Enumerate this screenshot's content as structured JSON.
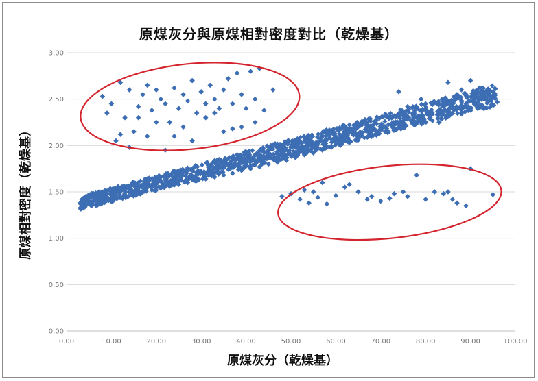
{
  "chart_data": {
    "type": "scatter",
    "title": "原煤灰分與原煤相對密度對比（乾燥基）",
    "xlabel": "原煤灰分（乾燥基）",
    "ylabel": "原煤相對密度（乾燥基）",
    "xlim": [
      0,
      100
    ],
    "ylim": [
      0,
      3
    ],
    "x_ticks": [
      "0.00",
      "10.00",
      "20.00",
      "30.00",
      "40.00",
      "50.00",
      "60.00",
      "70.00",
      "80.00",
      "90.00",
      "100.00"
    ],
    "y_ticks": [
      "0.00",
      "0.50",
      "1.00",
      "1.50",
      "2.00",
      "2.50",
      "3.00"
    ],
    "grid": "horizontal",
    "marker": "diamond",
    "colors": {
      "marker": "#3d6eb4",
      "highlight_ellipse": "#d4242d",
      "gridline": "#d9d9d9"
    },
    "highlight_regions": [
      {
        "x_range": [
          3,
          52
        ],
        "y_range": [
          1.96,
          2.88
        ]
      },
      {
        "x_range": [
          47,
          97
        ],
        "y_range": [
          1.0,
          1.78
        ]
      }
    ],
    "trend_band": {
      "x": [
        3,
        96
      ],
      "y": [
        1.38,
        2.55
      ]
    },
    "series": [
      {
        "x": [
          5,
          7,
          9,
          11,
          13,
          15,
          17,
          19,
          21,
          23,
          25,
          27,
          29,
          31,
          33,
          35,
          37,
          39,
          41,
          43,
          45,
          47,
          49,
          51,
          53,
          55,
          57,
          59,
          61,
          63,
          65,
          67,
          69,
          71,
          73,
          75,
          77,
          79,
          81,
          83,
          85,
          87,
          89,
          91,
          93,
          95
        ],
        "y": [
          1.37,
          1.4,
          1.42,
          1.44,
          1.46,
          1.48,
          1.5,
          1.52,
          1.54,
          1.56,
          1.58,
          1.6,
          1.62,
          1.64,
          1.66,
          1.68,
          1.7,
          1.73,
          1.75,
          1.77,
          1.8,
          1.82,
          1.84,
          1.87,
          1.9,
          1.92,
          1.95,
          1.98,
          2.0,
          2.03,
          2.06,
          2.09,
          2.12,
          2.15,
          2.18,
          2.21,
          2.24,
          2.27,
          2.3,
          2.33,
          2.37,
          2.4,
          2.43,
          2.47,
          2.5,
          2.54
        ]
      },
      {
        "x": [
          8,
          10,
          12,
          13,
          14,
          16,
          17,
          18,
          19,
          20,
          21,
          22,
          24,
          25,
          26,
          27,
          28,
          29,
          30,
          31,
          32,
          33,
          34,
          35,
          36,
          37,
          38,
          39,
          40,
          41,
          42,
          43,
          44,
          9,
          15,
          23,
          11,
          18,
          26,
          31,
          35,
          39,
          12,
          20,
          28,
          16,
          24,
          33,
          37,
          42,
          46,
          14,
          22
        ],
        "y": [
          2.53,
          2.45,
          2.68,
          2.3,
          2.6,
          2.42,
          2.55,
          2.65,
          2.38,
          2.6,
          2.5,
          2.45,
          2.62,
          2.4,
          2.55,
          2.48,
          2.7,
          2.35,
          2.58,
          2.45,
          2.65,
          2.5,
          2.4,
          2.6,
          2.72,
          2.45,
          2.78,
          2.55,
          2.4,
          2.8,
          2.5,
          2.83,
          2.38,
          2.35,
          2.15,
          2.25,
          2.05,
          2.1,
          2.2,
          2.3,
          2.15,
          2.2,
          2.12,
          2.25,
          2.05,
          2.3,
          2.1,
          2.35,
          2.18,
          2.25,
          2.6,
          1.98,
          1.95
        ]
      },
      {
        "x": [
          48,
          50,
          52,
          54,
          55,
          56,
          58,
          60,
          62,
          65,
          67,
          68,
          70,
          72,
          75,
          76,
          78,
          80,
          82,
          84,
          85,
          86,
          87,
          89,
          90,
          95,
          57,
          63,
          73,
          53
        ],
        "y": [
          1.45,
          1.48,
          1.42,
          1.38,
          1.5,
          1.44,
          1.37,
          1.46,
          1.55,
          1.5,
          1.42,
          1.45,
          1.4,
          1.43,
          1.5,
          1.45,
          1.68,
          1.42,
          1.5,
          1.48,
          1.5,
          1.42,
          1.38,
          1.35,
          1.75,
          1.47,
          1.6,
          1.58,
          1.48,
          1.52
        ]
      },
      {
        "x": [
          74,
          76,
          78,
          79,
          80,
          81,
          83,
          84,
          85,
          86,
          87,
          88,
          89,
          90,
          91,
          92,
          93,
          94,
          95,
          88,
          85
        ],
        "y": [
          2.58,
          2.42,
          2.3,
          2.5,
          2.45,
          2.35,
          2.25,
          2.5,
          2.68,
          2.4,
          2.55,
          2.6,
          2.45,
          2.7,
          2.5,
          2.62,
          2.4,
          2.55,
          2.58,
          2.35,
          2.32
        ]
      }
    ]
  }
}
